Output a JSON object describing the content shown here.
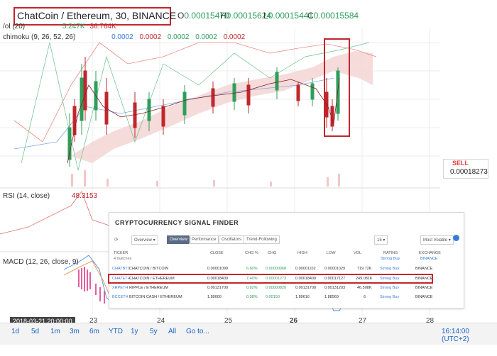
{
  "header": {
    "title": "ChatCoin / Ethereum, 30, BINANCE",
    "ohlc": [
      {
        "label": "O",
        "value": "0.00015470"
      },
      {
        "label": "H",
        "value": "0.00015624"
      },
      {
        "label": "L",
        "value": "0.00015441"
      },
      {
        "label": "C",
        "value": "0.00015584"
      }
    ],
    "volume_label": "/ol (20)",
    "volume_values": [
      "5.247K",
      "36.764K"
    ],
    "ichimoku_label": "chimoku (9, 26, 52, 26)",
    "ichimoku_values": [
      "0.0002",
      "0.0002",
      "0.0002",
      "0.0002",
      "0.0002"
    ],
    "rsi_label": "RSI (14, close)",
    "rsi_value": "48.3153",
    "macd_label": "MACD (12, 26, close, 9)"
  },
  "sell": {
    "label": "SELL",
    "price": "0.00018273"
  },
  "x_axis": {
    "current_date": "2018-03-21 20:00:00",
    "ticks": [
      "23",
      "24",
      "25",
      "26",
      "27",
      "28"
    ]
  },
  "toolbar": {
    "buttons": [
      "1d",
      "5d",
      "1m",
      "3m",
      "6m",
      "YTD",
      "1y",
      "5y",
      "All",
      "Go to..."
    ],
    "time": "16:14:00 (UTC+2)"
  },
  "scanner": {
    "title": "CRYPTOCURRENCY SIGNAL FINDER",
    "tabs": [
      "Overview",
      "Performance",
      "Oscillators",
      "Trend-Following"
    ],
    "active_tab": "Overview",
    "dropdown_overview": "Overview",
    "dropdown_interval": "15",
    "dropdown_volatile": "Most Volatile",
    "columns": [
      "TICKER",
      "CLOSE",
      "CHG %",
      "CHG",
      "HIGH",
      "LOW",
      "VOL",
      "RATING",
      "EXCHANGE"
    ],
    "matches": "4 matches",
    "rating_sub": "Strong Buy",
    "exchange_sub": "BINANCE",
    "rows": [
      {
        "ticker": "CHATBTC",
        "name": "CHATCOIN / BITCOIN",
        "close": "0.00001099",
        "chgp": "6.60%",
        "chg": "0.00000068",
        "high": "0.00001102",
        "low": "0.00001029",
        "vol": "719.72K",
        "rating": "Strong Buy",
        "exchange": "BINANCE"
      },
      {
        "ticker": "CHATETH",
        "name": "CHATCOIN / ETHEREUM",
        "close": "0.00018400",
        "chgp": "7.40%",
        "chg": "0.00001273",
        "high": "0.00018400",
        "low": "0.00017127",
        "vol": "249.081K",
        "rating": "Strong Buy",
        "exchange": "BINANCE"
      },
      {
        "ticker": "XRPETH",
        "name": "RIPPLE / ETHEREUM",
        "close": "0.00131700",
        "chgp": "0.92%",
        "chg": "0.00000820",
        "high": "0.00131700",
        "low": "0.00131203",
        "vol": "46.508K",
        "rating": "Strong Buy",
        "exchange": "BINANCE"
      },
      {
        "ticker": "BCCETH",
        "name": "BITCOIN CASH / ETHEREUM",
        "close": "1.89000",
        "chgp": "0.08%",
        "chg": "0.00150",
        "high": "1.89616",
        "low": "1.88569",
        "vol": "6",
        "rating": "Strong Buy",
        "exchange": "BINANCE"
      }
    ]
  },
  "colors": {
    "up": "#2e9e5b",
    "down": "#c0272d",
    "cloud": "#f5d5d5",
    "highlight": "#c0272d"
  }
}
